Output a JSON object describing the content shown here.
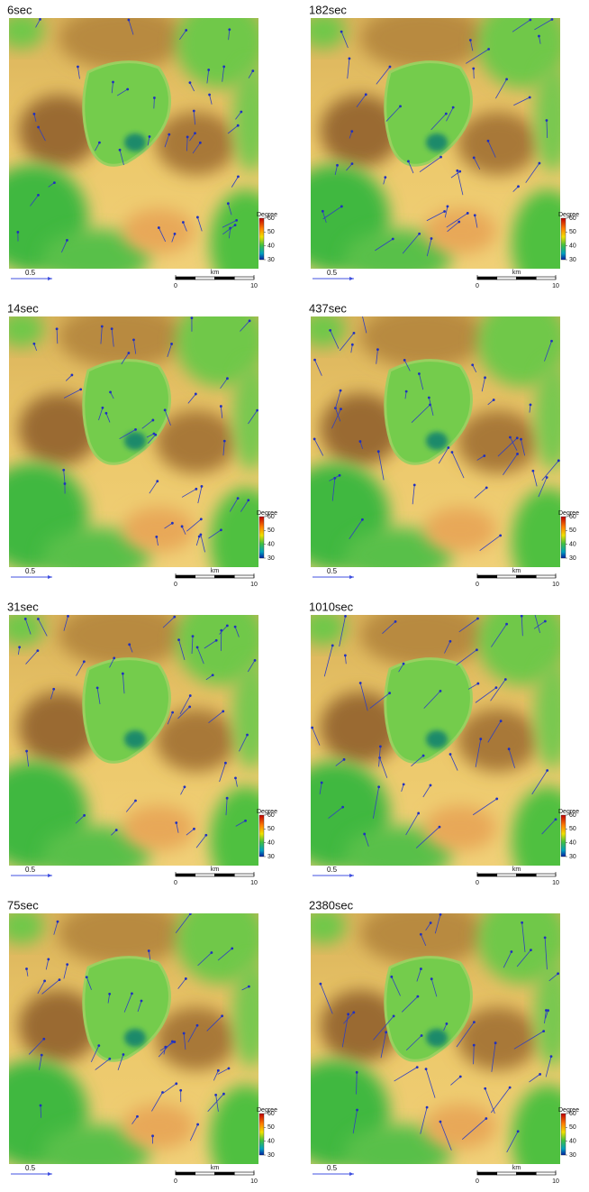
{
  "panels": [
    {
      "title": "6sec",
      "colorbar": {
        "label": "Degree",
        "ticks": [
          60,
          50,
          40,
          30
        ]
      },
      "arrow_scale": "0.5",
      "scale_bar": {
        "unit": "km",
        "ticks": [
          0,
          10
        ]
      }
    },
    {
      "title": "14sec",
      "colorbar": {
        "label": "Degree",
        "ticks": [
          60,
          50,
          40,
          30
        ]
      },
      "arrow_scale": "0.5",
      "scale_bar": {
        "unit": "km",
        "ticks": [
          0,
          10
        ]
      }
    },
    {
      "title": "31sec",
      "colorbar": {
        "label": "Degree",
        "ticks": [
          60,
          50,
          40,
          30
        ]
      },
      "arrow_scale": "0.5",
      "scale_bar": {
        "unit": "km",
        "ticks": [
          0,
          10
        ]
      }
    },
    {
      "title": "75sec",
      "colorbar": {
        "label": "Degree",
        "ticks": [
          60,
          50,
          40,
          30
        ]
      },
      "arrow_scale": "0.5",
      "scale_bar": {
        "unit": "km",
        "ticks": [
          0,
          10
        ]
      }
    },
    {
      "title": "182sec",
      "colorbar": {
        "label": "Degree",
        "ticks": [
          60,
          50,
          40,
          30
        ]
      },
      "arrow_scale": "0.5",
      "scale_bar": {
        "unit": "km",
        "ticks": [
          0,
          10
        ]
      }
    },
    {
      "title": "437sec",
      "colorbar": {
        "label": "Degree",
        "ticks": [
          60,
          50,
          40,
          30
        ]
      },
      "arrow_scale": "0.5",
      "scale_bar": {
        "unit": "km",
        "ticks": [
          0,
          10
        ]
      }
    },
    {
      "title": "1010sec",
      "colorbar": {
        "label": "Degree",
        "ticks": [
          60,
          50,
          40,
          30
        ]
      },
      "arrow_scale": "0.5",
      "scale_bar": {
        "unit": "km",
        "ticks": [
          0,
          10
        ]
      }
    },
    {
      "title": "2380sec",
      "colorbar": {
        "label": "Degree",
        "ticks": [
          60,
          50,
          40,
          30
        ]
      },
      "arrow_scale": "0.5",
      "scale_bar": {
        "unit": "km",
        "ticks": [
          0,
          10
        ]
      }
    }
  ]
}
